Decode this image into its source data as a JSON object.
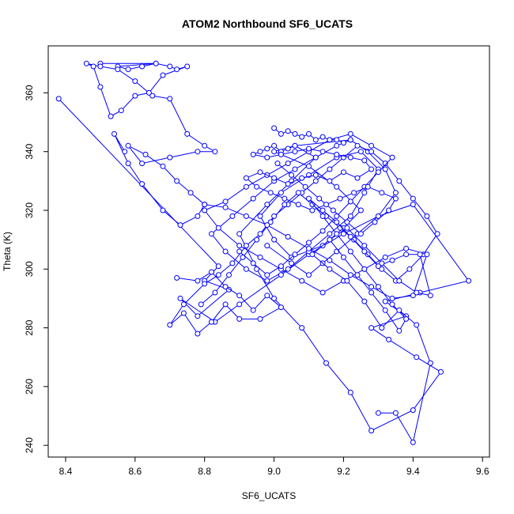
{
  "chart_data": {
    "type": "scatter",
    "title": "ATOM2 Northbound SF6_UCATS",
    "xlabel": "SF6_UCATS",
    "ylabel": "Theta (K)",
    "xlim": [
      8.35,
      9.62
    ],
    "ylim": [
      236,
      376
    ],
    "xticks": [
      8.4,
      8.6,
      8.8,
      9.0,
      9.2,
      9.4,
      9.6
    ],
    "xtick_labels": [
      "8.4",
      "8.6",
      "8.8",
      "9.0",
      "9.2",
      "9.4",
      "9.6"
    ],
    "yticks": [
      240,
      260,
      280,
      300,
      320,
      340,
      360
    ],
    "ytick_labels": [
      "240",
      "260",
      "280",
      "300",
      "320",
      "340",
      "360"
    ],
    "grid": false,
    "color": "#0000ff",
    "series": [
      {
        "x": [
          8.38,
          8.84,
          8.8,
          8.87,
          8.78,
          8.73,
          8.83,
          8.9,
          9.02,
          9.1,
          9.2,
          9.3,
          9.4,
          9.56,
          9.42,
          9.32,
          9.38,
          9.28,
          9.33,
          9.41,
          9.48,
          9.4,
          9.28,
          9.22,
          9.15,
          9.08,
          9.0,
          8.95,
          8.9,
          8.98,
          9.05,
          9.12,
          9.06,
          9.0,
          9.1,
          9.18,
          9.25,
          9.2,
          9.14,
          9.05,
          9.0,
          8.96,
          9.02,
          9.1,
          9.18,
          9.25,
          9.3,
          9.26,
          9.22,
          9.16,
          9.1,
          9.04,
          8.98,
          8.92,
          8.86,
          8.82,
          8.88,
          8.94,
          9.0,
          9.06,
          9.12,
          9.18,
          9.22,
          9.27,
          9.32,
          9.35,
          9.3,
          9.24,
          9.18,
          9.14,
          9.1,
          9.05,
          8.98
        ],
        "y": [
          358,
          301,
          296,
          293,
          284,
          290,
          282,
          288,
          298,
          305,
          312,
          318,
          322,
          296,
          292,
          289,
          284,
          280,
          276,
          270,
          265,
          252,
          245,
          258,
          268,
          280,
          290,
          300,
          312,
          322,
          330,
          338,
          342,
          340,
          335,
          328,
          320,
          314,
          308,
          304,
          310,
          318,
          326,
          332,
          338,
          340,
          334,
          326,
          318,
          312,
          306,
          300,
          296,
          300,
          306,
          312,
          318,
          324,
          330,
          334,
          338,
          342,
          344,
          340,
          334,
          326,
          318,
          312,
          306,
          302,
          298,
          302,
          308
        ]
      },
      {
        "x": [
          8.5,
          8.66,
          8.55,
          8.58,
          8.62,
          8.66,
          8.7,
          8.72,
          8.75,
          8.68,
          8.64,
          8.6,
          8.56,
          8.53,
          8.5,
          8.48,
          8.46,
          8.5,
          8.55,
          8.6,
          8.65,
          8.7,
          8.75,
          8.8,
          8.83,
          8.78,
          8.7,
          8.62,
          8.58,
          8.63,
          8.68,
          8.72,
          8.76,
          8.8,
          8.78,
          8.73,
          8.68,
          8.62,
          8.58,
          8.54,
          8.57
        ],
        "y": [
          370,
          370,
          369,
          368,
          369,
          370,
          369,
          368,
          369,
          366,
          360,
          359,
          354,
          352,
          362,
          369,
          370,
          369,
          368,
          364,
          359,
          358,
          346,
          342,
          340,
          340,
          338,
          336,
          342,
          339,
          335,
          330,
          326,
          322,
          318,
          315,
          320,
          329,
          336,
          346,
          340
        ]
      },
      {
        "x": [
          8.72,
          8.78,
          8.82,
          8.86,
          8.9,
          8.94,
          8.98,
          9.02,
          8.96,
          8.9,
          8.86,
          8.82,
          8.78,
          8.74,
          8.7,
          8.74,
          8.8,
          8.84,
          8.88,
          8.92,
          8.96,
          9.0,
          9.04,
          9.08,
          9.12,
          9.16,
          9.2,
          9.24,
          9.28,
          9.32,
          9.36,
          9.4,
          9.44,
          9.47,
          9.43,
          9.39,
          9.35,
          9.31,
          9.27,
          9.23,
          9.19,
          9.15,
          9.11,
          9.07,
          9.03,
          8.99,
          8.95,
          8.91,
          8.87,
          8.83,
          8.79
        ],
        "y": [
          297,
          296,
          299,
          294,
          291,
          286,
          291,
          287,
          283,
          283,
          288,
          282,
          278,
          285,
          281,
          288,
          295,
          298,
          302,
          308,
          312,
          318,
          322,
          326,
          330,
          334,
          338,
          342,
          340,
          336,
          330,
          324,
          318,
          312,
          305,
          300,
          296,
          300,
          305,
          310,
          314,
          318,
          322,
          326,
          322,
          316,
          310,
          304,
          298,
          292,
          288
        ]
      },
      {
        "x": [
          8.8,
          8.86,
          8.92,
          8.98,
          9.04,
          9.1,
          9.16,
          9.22,
          9.28,
          9.34,
          9.4,
          9.44,
          9.38,
          9.32,
          9.26,
          9.2,
          9.14,
          9.08,
          9.02,
          8.96,
          8.9,
          8.84,
          8.8,
          8.86,
          8.92,
          8.98,
          9.04,
          9.1,
          9.16,
          9.22,
          9.28,
          9.34,
          9.3,
          9.26,
          9.22,
          9.18,
          9.14,
          9.1,
          9.06,
          9.02,
          8.98,
          8.94,
          8.9
        ],
        "y": [
          322,
          321,
          318,
          315,
          311,
          307,
          303,
          298,
          294,
          290,
          291,
          305,
          307,
          304,
          300,
          296,
          292,
          296,
          300,
          304,
          308,
          314,
          320,
          323,
          328,
          332,
          336,
          340,
          344,
          346,
          342,
          338,
          333,
          328,
          323,
          318,
          313,
          309,
          305,
          301,
          298,
          302,
          306
        ]
      },
      {
        "x": [
          9.0,
          9.02,
          9.04,
          9.06,
          9.08,
          9.1,
          9.12,
          9.14,
          9.16,
          9.18,
          9.2,
          9.22,
          9.06,
          9.04,
          9.02,
          9.0,
          8.98,
          8.96,
          8.94,
          8.98,
          9.02,
          9.06,
          9.1,
          9.14,
          9.18,
          9.22,
          9.26,
          9.28,
          9.24,
          9.2,
          9.16,
          9.12,
          9.08,
          9.04,
          9.0,
          8.96,
          8.92,
          8.95,
          8.99,
          9.03,
          9.07,
          9.11,
          9.15,
          9.19,
          9.23,
          9.27,
          9.31,
          9.35,
          9.33,
          9.29,
          9.25,
          9.21,
          9.17,
          9.13,
          9.09,
          9.05,
          9.01
        ],
        "y": [
          348,
          346,
          347,
          346,
          345,
          346,
          344,
          345,
          344,
          344,
          343,
          344,
          342,
          341,
          340,
          342,
          341,
          340,
          339,
          338,
          339,
          340,
          341,
          340,
          339,
          338,
          337,
          334,
          331,
          333,
          330,
          332,
          331,
          329,
          331,
          333,
          331,
          328,
          326,
          324,
          322,
          320,
          322,
          324,
          326,
          328,
          326,
          324,
          320,
          316,
          312,
          316,
          320,
          324,
          328,
          332,
          336
        ]
      },
      {
        "x": [
          9.3,
          9.35,
          9.4,
          9.45,
          9.41,
          9.36,
          9.31,
          9.26,
          9.21,
          9.16,
          9.11,
          9.16,
          9.21,
          9.26,
          9.31,
          9.36,
          9.41,
          9.45,
          9.42,
          9.38,
          9.34,
          9.3,
          9.26,
          9.22,
          9.18,
          9.14,
          9.1,
          9.14,
          9.18,
          9.22,
          9.26,
          9.3,
          9.34,
          9.38,
          9.36,
          9.32,
          9.28,
          9.24,
          9.2,
          9.16
        ],
        "y": [
          251,
          251,
          241,
          268,
          281,
          286,
          280,
          289,
          296,
          300,
          305,
          310,
          314,
          308,
          302,
          296,
          292,
          291,
          305,
          305,
          303,
          301,
          306,
          311,
          316,
          320,
          324,
          318,
          312,
          306,
          300,
          294,
          288,
          283,
          279,
          286,
          292,
          298,
          304,
          310
        ]
      }
    ]
  }
}
